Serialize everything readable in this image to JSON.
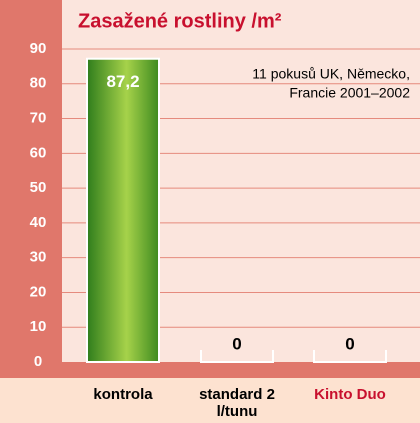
{
  "chart_data": {
    "type": "bar",
    "title": "Zasažené rostliny /m²",
    "annotation": [
      "11 pokusů UK, Německo,",
      "Francie 2001–2002"
    ],
    "categories": [
      "kontrola",
      "standard 2 l/tunu",
      "Kinto Duo"
    ],
    "category_colors": [
      "#000000",
      "#000000",
      "#c8102e"
    ],
    "values": [
      87.2,
      0,
      0
    ],
    "value_labels": [
      "87,2",
      "0",
      "0"
    ],
    "color": "#5aa82a",
    "ylim": [
      0,
      90
    ],
    "yticks": [
      0,
      10,
      20,
      30,
      40,
      50,
      60,
      70,
      80,
      90
    ],
    "grid": true
  }
}
